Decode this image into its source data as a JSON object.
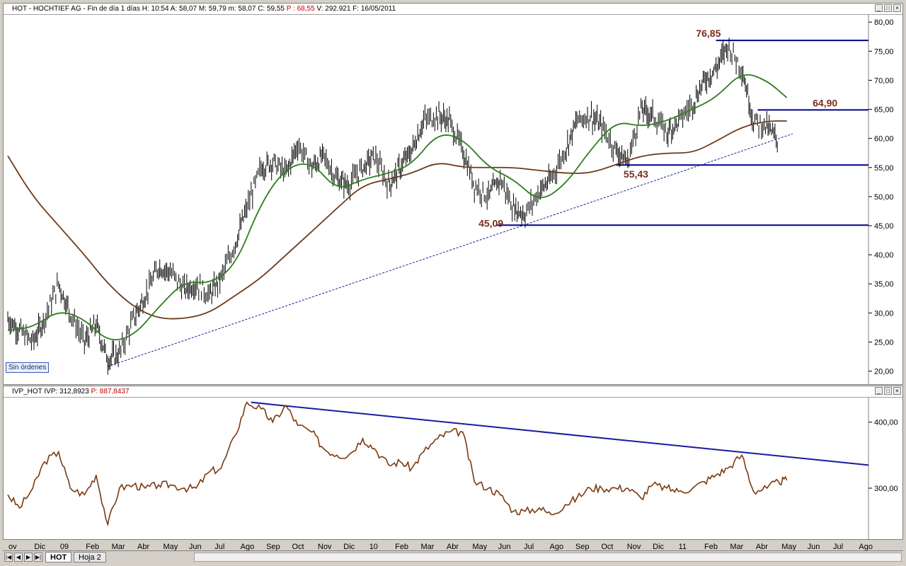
{
  "top_pane": {
    "header_prefix": "HOT - HOCHTIEF AG - Fin de día 1 días  H: 10:54  A: 58,07  M: 59,79  m: 58,07  C: 59,55  ",
    "header_red": "P : 68,55",
    "header_suffix": "  V: 292.921  F: 16/05/2011",
    "sin_ordenes": "Sin órdenes"
  },
  "bottom_pane": {
    "header_prefix": "IVP_HOT  IVP: 312,8923  ",
    "header_red": "P: 887,8437"
  },
  "window_buttons": [
    "_",
    "□",
    "×"
  ],
  "x_axis_labels": [
    "ov",
    "Dic",
    "09",
    "Feb",
    "Mar",
    "Abr",
    "May",
    "Jun",
    "Jul",
    "Ago",
    "Sep",
    "Oct",
    "Nov",
    "Dic",
    "10",
    "Feb",
    "Mar",
    "Abr",
    "May",
    "Jun",
    "Jul",
    "Ago",
    "Sep",
    "Oct",
    "Nov",
    "Dic",
    "11",
    "Feb",
    "Mar",
    "Abr",
    "May",
    "Jun",
    "Jul",
    "Ago"
  ],
  "tabs": [
    {
      "label": "HOT",
      "active": true
    },
    {
      "label": "Hoja 2",
      "active": false
    }
  ],
  "nav_buttons": [
    "|◀",
    "◀",
    "▶",
    "▶|"
  ],
  "colors": {
    "price": "#000000",
    "ma_fast": "#2e7d1e",
    "ma_slow": "#6b3a1a",
    "levels": "#00008b",
    "trend": "#1a1aa0",
    "ivp": "#7a3a10",
    "price_label": "#7b2d1a"
  },
  "chart_data": [
    {
      "type": "line",
      "title": "",
      "ylim": [
        18,
        81
      ],
      "y_ticks": [
        "80,00",
        "75,00",
        "70,00",
        "65,00",
        "60,00",
        "55,00",
        "50,00",
        "45,00",
        "40,00",
        "35,00",
        "30,00",
        "25,00",
        "20,00"
      ],
      "x_range": [
        "2008-11-01",
        "2011-08-31"
      ],
      "annotations": [
        {
          "text": "76,85",
          "value": 76.85,
          "line_from": "2011-03-01",
          "line_to": "2011-08-31",
          "label_at": "2011-02-05"
        },
        {
          "text": "64,90",
          "value": 64.9,
          "line_from": "2011-04-20",
          "line_to": "2011-08-31",
          "label_at": "2011-06-25"
        },
        {
          "text": "55,43",
          "value": 55.43,
          "line_from": "2010-11-01",
          "line_to": "2011-08-31",
          "label_at": "2010-11-10"
        },
        {
          "text": "45,09",
          "value": 45.09,
          "line_from": "2010-06-10",
          "line_to": "2011-08-31",
          "label_at": "2010-05-20"
        }
      ],
      "trendline": {
        "from": [
          "2009-03-01",
          20.8
        ],
        "to": [
          "2011-06-01",
          60.8
        ],
        "style": "dashed"
      },
      "series": [
        {
          "key": "price",
          "style": "ohlc",
          "x": [
            "2008-11-01",
            "2008-11-15",
            "2008-12-01",
            "2008-12-15",
            "2009-01-01",
            "2009-01-15",
            "2009-02-01",
            "2009-02-15",
            "2009-03-01",
            "2009-03-15",
            "2009-04-01",
            "2009-04-15",
            "2009-05-01",
            "2009-05-15",
            "2009-06-01",
            "2009-06-15",
            "2009-07-01",
            "2009-07-15",
            "2009-08-01",
            "2009-08-15",
            "2009-09-01",
            "2009-09-15",
            "2009-10-01",
            "2009-10-15",
            "2009-11-01",
            "2009-11-15",
            "2009-12-01",
            "2009-12-15",
            "2010-01-01",
            "2010-01-15",
            "2010-02-01",
            "2010-02-15",
            "2010-03-01",
            "2010-03-15",
            "2010-04-01",
            "2010-04-15",
            "2010-05-01",
            "2010-05-15",
            "2010-06-01",
            "2010-06-15",
            "2010-07-01",
            "2010-07-15",
            "2010-08-01",
            "2010-08-15",
            "2010-09-01",
            "2010-09-15",
            "2010-10-01",
            "2010-10-15",
            "2010-11-01",
            "2010-11-15",
            "2010-12-01",
            "2010-12-15",
            "2011-01-01",
            "2011-01-15",
            "2011-02-01",
            "2011-02-15",
            "2011-03-01",
            "2011-03-15",
            "2011-04-01",
            "2011-04-15",
            "2011-05-01",
            "2011-05-15"
          ],
          "y": [
            29,
            27,
            25,
            29,
            35,
            30,
            25,
            28,
            22,
            23,
            29,
            33,
            38,
            37,
            34,
            35,
            33,
            36,
            42,
            48,
            55,
            56,
            54,
            59,
            55,
            57,
            53,
            52,
            55,
            57,
            52,
            55,
            58,
            63,
            64,
            63,
            58,
            52,
            50,
            53,
            48,
            47,
            51,
            53,
            58,
            63,
            64,
            62,
            58,
            56,
            65,
            64,
            61,
            63,
            66,
            70,
            72,
            76,
            72,
            63,
            62,
            59.5
          ]
        },
        {
          "key": "ma_fast",
          "x": [
            "2008-11-01",
            "2008-12-01",
            "2009-01-01",
            "2009-02-01",
            "2009-03-01",
            "2009-04-01",
            "2009-05-01",
            "2009-06-01",
            "2009-07-01",
            "2009-08-01",
            "2009-09-01",
            "2009-10-01",
            "2009-11-01",
            "2009-12-01",
            "2010-01-01",
            "2010-02-01",
            "2010-03-01",
            "2010-04-01",
            "2010-05-01",
            "2010-06-01",
            "2010-07-01",
            "2010-08-01",
            "2010-09-01",
            "2010-10-01",
            "2010-11-01",
            "2010-12-01",
            "2011-01-01",
            "2011-02-01",
            "2011-03-01",
            "2011-04-01",
            "2011-05-01",
            "2011-05-25"
          ],
          "y": [
            27,
            27.5,
            30.5,
            29,
            25,
            26,
            31,
            35.5,
            35,
            38,
            49,
            55,
            56,
            51,
            53,
            54,
            55.5,
            61,
            60,
            55,
            53,
            49,
            52,
            58,
            63,
            62,
            63,
            65,
            67,
            71.5,
            70,
            67
          ]
        },
        {
          "key": "ma_slow",
          "x": [
            "2008-11-01",
            "2008-12-01",
            "2009-01-01",
            "2009-02-01",
            "2009-03-01",
            "2009-04-01",
            "2009-05-01",
            "2009-06-01",
            "2009-07-01",
            "2009-08-01",
            "2009-09-01",
            "2009-10-01",
            "2009-11-01",
            "2009-12-01",
            "2010-01-01",
            "2010-02-01",
            "2010-03-01",
            "2010-04-01",
            "2010-05-01",
            "2010-06-01",
            "2010-07-01",
            "2010-08-01",
            "2010-09-01",
            "2010-10-01",
            "2010-11-01",
            "2010-12-01",
            "2011-01-01",
            "2011-02-01",
            "2011-03-01",
            "2011-04-01",
            "2011-05-01",
            "2011-05-25"
          ],
          "y": [
            57,
            50,
            45,
            40,
            35,
            31,
            29,
            29,
            30,
            33,
            36,
            40,
            44,
            48,
            52,
            53,
            54,
            56,
            55,
            55,
            55,
            54.5,
            54,
            54,
            55.5,
            57,
            57.5,
            57.5,
            59.5,
            62,
            63,
            63
          ]
        }
      ]
    },
    {
      "type": "line",
      "title": "",
      "ylim": [
        225,
        435
      ],
      "y_ticks": [
        "400,00",
        "300,00"
      ],
      "trendline": {
        "from": [
          "2009-08-20",
          430
        ],
        "to": [
          "2011-08-31",
          335
        ]
      },
      "series": [
        {
          "key": "ivp",
          "x": [
            "2008-11-01",
            "2008-11-15",
            "2008-12-01",
            "2008-12-15",
            "2009-01-01",
            "2009-01-15",
            "2009-02-01",
            "2009-02-15",
            "2009-03-01",
            "2009-03-15",
            "2009-04-01",
            "2009-04-15",
            "2009-05-01",
            "2009-05-15",
            "2009-06-01",
            "2009-06-15",
            "2009-07-01",
            "2009-07-15",
            "2009-08-01",
            "2009-08-15",
            "2009-09-01",
            "2009-09-15",
            "2009-10-01",
            "2009-10-15",
            "2009-11-01",
            "2009-11-15",
            "2009-12-01",
            "2009-12-15",
            "2010-01-01",
            "2010-01-15",
            "2010-02-01",
            "2010-02-15",
            "2010-03-01",
            "2010-03-15",
            "2010-04-01",
            "2010-04-15",
            "2010-05-01",
            "2010-05-15",
            "2010-06-01",
            "2010-06-15",
            "2010-07-01",
            "2010-07-15",
            "2010-08-01",
            "2010-08-15",
            "2010-09-01",
            "2010-09-15",
            "2010-10-01",
            "2010-10-15",
            "2010-11-01",
            "2010-11-15",
            "2010-12-01",
            "2010-12-15",
            "2011-01-01",
            "2011-01-15",
            "2011-02-01",
            "2011-02-15",
            "2011-03-01",
            "2011-03-15",
            "2011-04-01",
            "2011-04-15",
            "2011-05-01",
            "2011-05-15",
            "2011-05-25"
          ],
          "y": [
            290,
            270,
            300,
            340,
            355,
            300,
            290,
            320,
            245,
            300,
            305,
            300,
            305,
            305,
            300,
            300,
            325,
            330,
            380,
            430,
            420,
            400,
            425,
            395,
            385,
            360,
            350,
            350,
            375,
            360,
            335,
            340,
            330,
            355,
            375,
            385,
            385,
            310,
            300,
            290,
            265,
            265,
            270,
            260,
            275,
            285,
            300,
            300,
            300,
            300,
            285,
            305,
            300,
            295,
            300,
            310,
            320,
            330,
            350,
            295,
            300,
            310,
            312
          ]
        }
      ]
    }
  ]
}
